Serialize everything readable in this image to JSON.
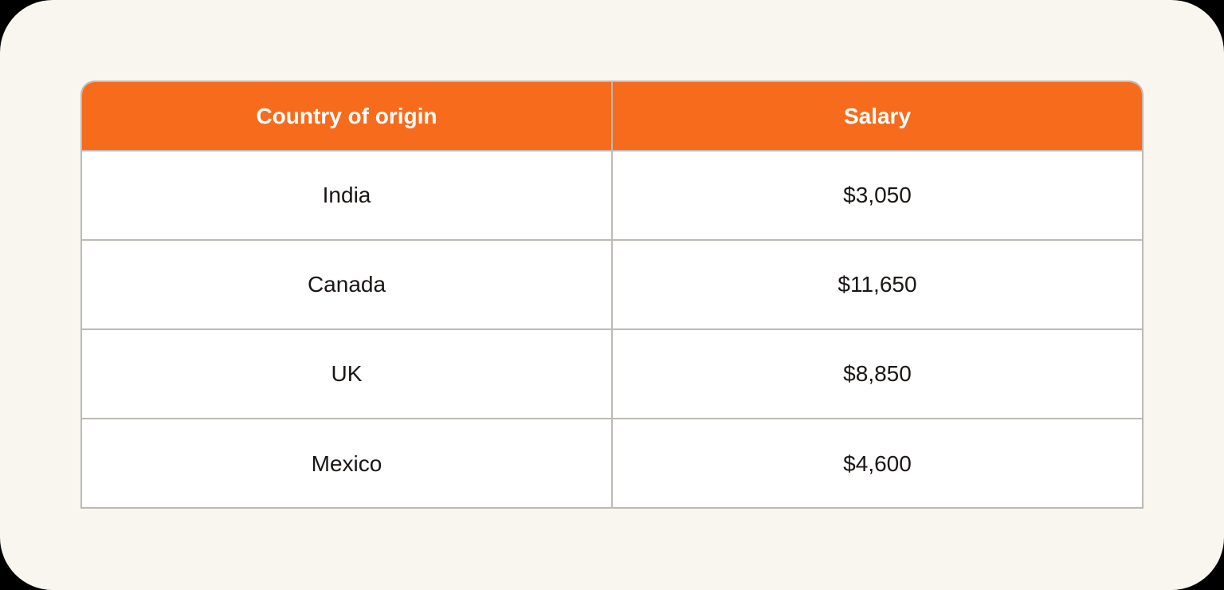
{
  "table": {
    "headers": [
      "Country of origin",
      "Salary"
    ],
    "rows": [
      {
        "country": "India",
        "salary": "$3,050"
      },
      {
        "country": "Canada",
        "salary": "$11,650"
      },
      {
        "country": "UK",
        "salary": "$8,850"
      },
      {
        "country": "Mexico",
        "salary": "$4,600"
      }
    ]
  },
  "colors": {
    "header_bg": "#f76b1c",
    "card_bg": "#f9f5ef",
    "border": "#bdbab6"
  }
}
